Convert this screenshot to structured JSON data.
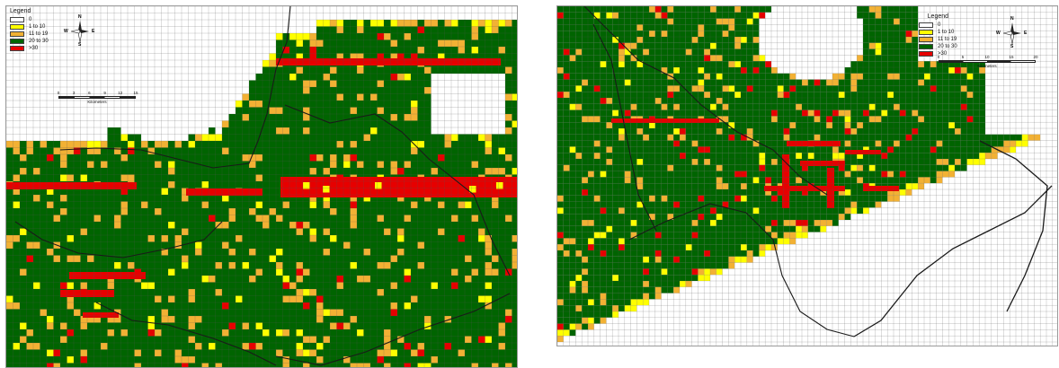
{
  "colors": {
    "class_0": "#ffffff",
    "class_1_10": "#ffff00",
    "class_11_19": "#f2b134",
    "class_20_30": "#006400",
    "class_gt30": "#e60000",
    "grid_line": "#555555",
    "boundary": "#1a1a1a"
  },
  "maps": [
    {
      "id": "left",
      "legend": {
        "title": "Legend",
        "items": [
          {
            "label": "0",
            "class": "class_0"
          },
          {
            "label": "1 to 10",
            "class": "class_1_10"
          },
          {
            "label": "11 to 19",
            "class": "class_11_19"
          },
          {
            "label": "20 to 30",
            "class": "class_20_30"
          },
          {
            "label": ">30",
            "class": "class_gt30"
          }
        ]
      },
      "compass": {
        "n": "N",
        "s": "S",
        "e": "E",
        "w": "W"
      },
      "scale": {
        "ticks": [
          "0",
          "3",
          "6",
          "9",
          "12",
          "15"
        ],
        "unit": "Kilometers"
      }
    },
    {
      "id": "right",
      "legend": {
        "title": "Legend",
        "items": [
          {
            "label": "0",
            "class": "class_0"
          },
          {
            "label": "1 to 10",
            "class": "class_1_10"
          },
          {
            "label": "11 to 19",
            "class": "class_11_19"
          },
          {
            "label": "20 to 30",
            "class": "class_20_30"
          },
          {
            "label": ">30",
            "class": "class_gt30"
          }
        ]
      },
      "compass": {
        "n": "N",
        "s": "S",
        "e": "E",
        "w": "W"
      },
      "scale": {
        "ticks": [
          "0",
          "5",
          "10",
          "15",
          "20"
        ],
        "unit": "Kilometers"
      }
    }
  ]
}
